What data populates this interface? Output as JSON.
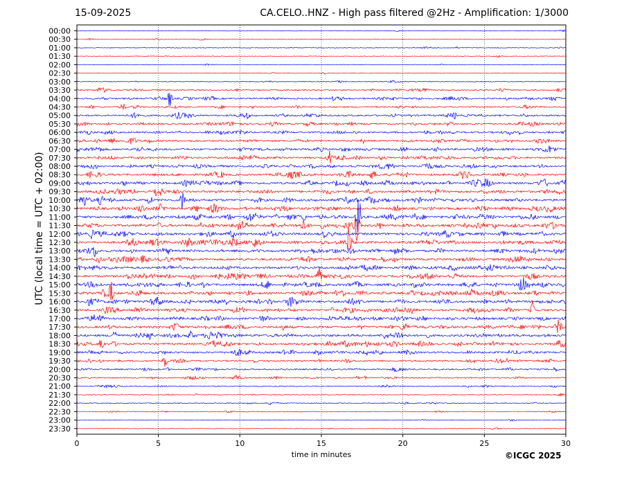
{
  "header": {
    "date": "15-09-2025",
    "title": "CA.CELO..HNZ - High pass filtered @2Hz - Amplification: 1/3000"
  },
  "footer": {
    "copyright": "©ICGC 2025"
  },
  "colors": {
    "trace_a": "#ff0000",
    "trace_b": "#0000ff",
    "grid": "#000000"
  },
  "chart_data": {
    "type": "line",
    "chart_kind": "helicorder seismogram",
    "xlabel": "time in minutes",
    "ylabel": "UTC (local time = UTC + 02:00)",
    "xlim": [
      0,
      30
    ],
    "xticks": [
      0,
      5,
      10,
      15,
      20,
      25,
      30
    ],
    "grid": "vertical dotted lines at 5-minute ticks",
    "row_labels": [
      "00:00",
      "00:30",
      "01:00",
      "01:30",
      "02:00",
      "02:30",
      "03:00",
      "03:30",
      "04:00",
      "04:30",
      "05:00",
      "05:30",
      "06:00",
      "06:30",
      "07:00",
      "07:30",
      "08:00",
      "08:30",
      "09:00",
      "09:30",
      "10:00",
      "10:30",
      "11:00",
      "11:30",
      "12:00",
      "12:30",
      "13:00",
      "13:30",
      "14:00",
      "14:30",
      "15:00",
      "15:30",
      "16:00",
      "16:30",
      "17:00",
      "17:30",
      "18:00",
      "18:30",
      "19:00",
      "19:30",
      "20:00",
      "20:30",
      "21:00",
      "21:30",
      "22:00",
      "22:30",
      "23:00",
      "23:30"
    ],
    "trace_colors_alternate": [
      "blue",
      "red"
    ],
    "activity_level": [
      0.05,
      0.08,
      0.1,
      0.06,
      0.06,
      0.07,
      0.15,
      0.35,
      0.45,
      0.4,
      0.5,
      0.5,
      0.5,
      0.55,
      0.6,
      0.6,
      0.6,
      0.65,
      0.7,
      0.7,
      0.75,
      0.75,
      0.8,
      0.8,
      0.75,
      0.75,
      0.7,
      0.7,
      0.7,
      0.7,
      0.75,
      0.75,
      0.75,
      0.7,
      0.7,
      0.7,
      0.7,
      0.65,
      0.6,
      0.45,
      0.4,
      0.35,
      0.2,
      0.15,
      0.15,
      0.15,
      0.05,
      0.05
    ],
    "events": [
      {
        "row": 8,
        "minute": 5.7,
        "amp": 1.0
      },
      {
        "row": 15,
        "minute": 15.5,
        "amp": 0.9
      },
      {
        "row": 20,
        "minute": 6.5,
        "amp": 1.0
      },
      {
        "row": 22,
        "minute": 17.3,
        "amp": 3.2
      },
      {
        "row": 23,
        "minute": 17.2,
        "amp": 2.0
      },
      {
        "row": 25,
        "minute": 16.7,
        "amp": 1.6
      },
      {
        "row": 26,
        "minute": 1.1,
        "amp": 0.8
      },
      {
        "row": 29,
        "minute": 14.8,
        "amp": 1.5
      },
      {
        "row": 31,
        "minute": 2.1,
        "amp": 1.4
      },
      {
        "row": 33,
        "minute": 28.0,
        "amp": 1.3
      },
      {
        "row": 35,
        "minute": 29.5,
        "amp": 0.9
      },
      {
        "row": 36,
        "minute": 2.3,
        "amp": 0.9
      },
      {
        "row": 37,
        "minute": 1.5,
        "amp": 1.0
      },
      {
        "row": 39,
        "minute": 5.4,
        "amp": 0.8
      }
    ]
  }
}
